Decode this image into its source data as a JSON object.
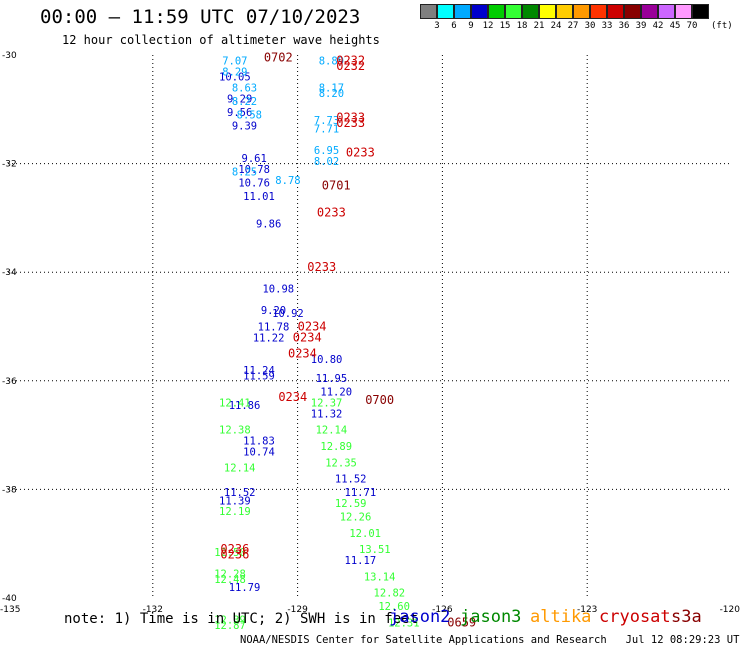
{
  "header": {
    "title": "00:00 – 11:59 UTC 07/10/2023",
    "subtitle": "12 hour collection of altimeter wave heights"
  },
  "color_scale": {
    "colors": [
      "#7f7f7f",
      "#00ffff",
      "#00aaff",
      "#0000cc",
      "#00cc00",
      "#33ff33",
      "#008800",
      "#ffff00",
      "#ffcc00",
      "#ff9900",
      "#ff3300",
      "#cc0000",
      "#880000",
      "#990099",
      "#cc66ff",
      "#ff99ff",
      "#000000"
    ],
    "labels": [
      "3",
      "6",
      "9",
      "12",
      "15",
      "18",
      "21",
      "24",
      "27",
      "30",
      "33",
      "36",
      "39",
      "42",
      "45",
      "70"
    ],
    "unit": "(ft)"
  },
  "chart_data": {
    "type": "scatter",
    "xlim": [
      -135,
      -120
    ],
    "ylim": [
      -40,
      -30
    ],
    "x_ticks": [
      "-135",
      "-132",
      "-129",
      "-126",
      "-123",
      "-120"
    ],
    "y_ticks": [
      "-30",
      "-32",
      "-34",
      "-36",
      "-38",
      "-40"
    ],
    "grid": true,
    "series": [
      {
        "name": "jason2",
        "color": "#0000cc",
        "points": [
          {
            "lon": -130.3,
            "lat": -30.4,
            "label": "10.05"
          },
          {
            "lon": -130.2,
            "lat": -30.8,
            "label": "9.29"
          },
          {
            "lon": -130.2,
            "lat": -31.05,
            "label": "9.56"
          },
          {
            "lon": -130.1,
            "lat": -31.3,
            "label": "9.39"
          },
          {
            "lon": -129.9,
            "lat": -31.9,
            "label": "9.61"
          },
          {
            "lon": -129.9,
            "lat": -32.1,
            "label": "10.78"
          },
          {
            "lon": -129.9,
            "lat": -32.35,
            "label": "10.76"
          },
          {
            "lon": -129.8,
            "lat": -32.6,
            "label": "11.01"
          },
          {
            "lon": -129.6,
            "lat": -33.1,
            "label": "9.86"
          },
          {
            "lon": -129.4,
            "lat": -34.3,
            "label": "10.98"
          },
          {
            "lon": -129.5,
            "lat": -34.7,
            "label": "9.20"
          },
          {
            "lon": -129.2,
            "lat": -34.75,
            "label": "10.92"
          },
          {
            "lon": -129.5,
            "lat": -35.0,
            "label": "11.78"
          },
          {
            "lon": -129.6,
            "lat": -35.2,
            "label": "11.22"
          },
          {
            "lon": -128.4,
            "lat": -35.6,
            "label": "10.80"
          },
          {
            "lon": -129.8,
            "lat": -35.8,
            "label": "11.24"
          },
          {
            "lon": -129.8,
            "lat": -35.9,
            "label": "11.59"
          },
          {
            "lon": -128.3,
            "lat": -35.95,
            "label": "11.95"
          },
          {
            "lon": -128.2,
            "lat": -36.2,
            "label": "11.20"
          },
          {
            "lon": -130.1,
            "lat": -36.45,
            "label": "11.86"
          },
          {
            "lon": -128.4,
            "lat": -36.6,
            "label": "11.32"
          },
          {
            "lon": -129.8,
            "lat": -37.1,
            "label": "11.83"
          },
          {
            "lon": -129.8,
            "lat": -37.3,
            "label": "10.74"
          },
          {
            "lon": -127.9,
            "lat": -37.8,
            "label": "11.52"
          },
          {
            "lon": -127.7,
            "lat": -38.05,
            "label": "11.71"
          },
          {
            "lon": -130.2,
            "lat": -38.05,
            "label": "11.52"
          },
          {
            "lon": -130.3,
            "lat": -38.2,
            "label": "11.39"
          },
          {
            "lon": -127.7,
            "lat": -39.3,
            "label": "11.17"
          },
          {
            "lon": -130.1,
            "lat": -39.8,
            "label": "11.79"
          }
        ]
      },
      {
        "name": "jason2-light",
        "color": "#00aaff",
        "points": [
          {
            "lon": -130.3,
            "lat": -30.1,
            "label": "7.07"
          },
          {
            "lon": -130.3,
            "lat": -30.3,
            "label": "8.29"
          },
          {
            "lon": -130.1,
            "lat": -30.6,
            "label": "8.63"
          },
          {
            "lon": -130.1,
            "lat": -30.85,
            "label": "8.22"
          },
          {
            "lon": -130.0,
            "lat": -31.1,
            "label": "8.58"
          },
          {
            "lon": -128.3,
            "lat": -30.1,
            "label": "8.89"
          },
          {
            "lon": -128.3,
            "lat": -30.6,
            "label": "8.17"
          },
          {
            "lon": -128.3,
            "lat": -30.7,
            "label": "8.20"
          },
          {
            "lon": -128.4,
            "lat": -31.2,
            "label": "7.73"
          },
          {
            "lon": -128.4,
            "lat": -31.35,
            "label": "7.71"
          },
          {
            "lon": -128.4,
            "lat": -31.75,
            "label": "6.95"
          },
          {
            "lon": -128.4,
            "lat": -31.95,
            "label": "8.02"
          },
          {
            "lon": -130.1,
            "lat": -32.15,
            "label": "8.25"
          },
          {
            "lon": -129.2,
            "lat": -32.3,
            "label": "8.78"
          }
        ]
      },
      {
        "name": "jason3",
        "color": "#33ff33",
        "points": [
          {
            "lon": -130.3,
            "lat": -36.4,
            "label": "12.41"
          },
          {
            "lon": -128.4,
            "lat": -36.4,
            "label": "12.37"
          },
          {
            "lon": -130.3,
            "lat": -36.9,
            "label": "12.38"
          },
          {
            "lon": -128.3,
            "lat": -36.9,
            "label": "12.14"
          },
          {
            "lon": -128.2,
            "lat": -37.2,
            "label": "12.89"
          },
          {
            "lon": -128.1,
            "lat": -37.5,
            "label": "12.35"
          },
          {
            "lon": -130.2,
            "lat": -37.6,
            "label": "12.14"
          },
          {
            "lon": -127.9,
            "lat": -38.25,
            "label": "12.59"
          },
          {
            "lon": -130.3,
            "lat": -38.4,
            "label": "12.19"
          },
          {
            "lon": -127.8,
            "lat": -38.5,
            "label": "12.26"
          },
          {
            "lon": -127.6,
            "lat": -38.8,
            "label": "12.01"
          },
          {
            "lon": -127.4,
            "lat": -39.1,
            "label": "13.51"
          },
          {
            "lon": -130.4,
            "lat": -39.15,
            "label": "12.50"
          },
          {
            "lon": -130.4,
            "lat": -39.55,
            "label": "12.28"
          },
          {
            "lon": -130.4,
            "lat": -39.65,
            "label": "12.48"
          },
          {
            "lon": -127.3,
            "lat": -39.6,
            "label": "13.14"
          },
          {
            "lon": -127.1,
            "lat": -39.9,
            "label": "12.82"
          },
          {
            "lon": -127.0,
            "lat": -40.15,
            "label": "12.60"
          },
          {
            "lon": -126.8,
            "lat": -40.45,
            "label": "12.31"
          },
          {
            "lon": -130.4,
            "lat": -40.4,
            "label": "12.39"
          },
          {
            "lon": -130.4,
            "lat": -40.5,
            "label": "12.87"
          }
        ]
      },
      {
        "name": "time-labels",
        "color": "#cc0000",
        "points": [
          {
            "lon": -127.9,
            "lat": -30.1,
            "label": "0232"
          },
          {
            "lon": -127.9,
            "lat": -30.2,
            "label": "0232"
          },
          {
            "lon": -127.9,
            "lat": -31.15,
            "label": "0233"
          },
          {
            "lon": -127.9,
            "lat": -31.25,
            "label": "0233"
          },
          {
            "lon": -127.7,
            "lat": -31.8,
            "label": "0233"
          },
          {
            "lon": -128.3,
            "lat": -32.9,
            "label": "0233"
          },
          {
            "lon": -128.5,
            "lat": -33.9,
            "label": "0233"
          },
          {
            "lon": -128.7,
            "lat": -35.0,
            "label": "0234"
          },
          {
            "lon": -128.8,
            "lat": -35.2,
            "label": "0234"
          },
          {
            "lon": -128.9,
            "lat": -35.5,
            "label": "0234"
          },
          {
            "lon": -129.1,
            "lat": -36.3,
            "label": "0234"
          },
          {
            "lon": -130.3,
            "lat": -39.1,
            "label": "0236"
          },
          {
            "lon": -130.3,
            "lat": -39.2,
            "label": "0236"
          }
        ]
      },
      {
        "name": "time-labels-dark",
        "color": "#880000",
        "points": [
          {
            "lon": -129.4,
            "lat": -30.05,
            "label": "0702"
          },
          {
            "lon": -128.2,
            "lat": -32.4,
            "label": "0701"
          },
          {
            "lon": -127.3,
            "lat": -36.35,
            "label": "0700"
          },
          {
            "lon": -125.6,
            "lat": -40.45,
            "label": "0659"
          }
        ]
      }
    ]
  },
  "note": "note: 1) Time is in UTC; 2) SWH is in feet",
  "satellites": [
    {
      "name": "jason2",
      "color": "#0000cc"
    },
    {
      "name": "jason3",
      "color": "#008800"
    },
    {
      "name": "altika",
      "color": "#ff9900"
    },
    {
      "name": "cryosat",
      "color": "#cc0000"
    },
    {
      "name": "s3a",
      "color": "#880000"
    }
  ],
  "footer": "NOAA/NESDIS Center for Satellite Applications and Research   Jul 12 08:29:23 UTC 2023"
}
